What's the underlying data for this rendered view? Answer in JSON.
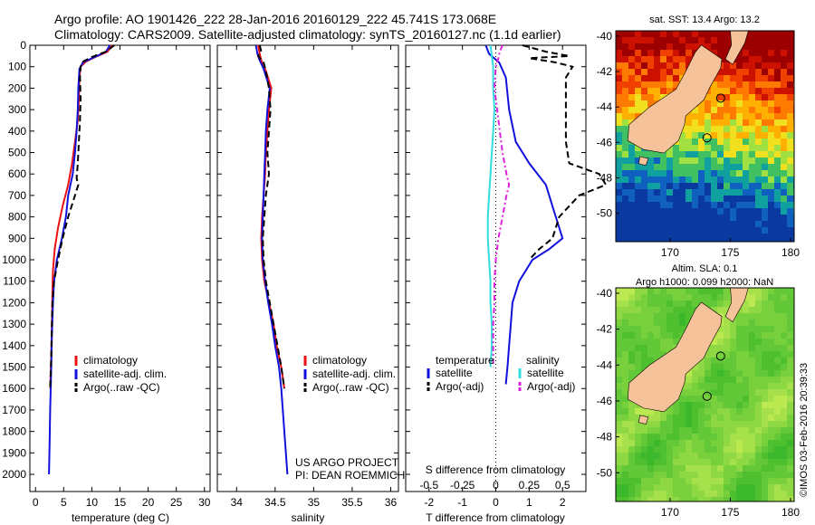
{
  "header": {
    "line1": "Argo profile: AO 1901426_222 28-Jan-2016 20160129_222 45.741S 173.068E",
    "line2": "Climatology: CARS2009. Satellite-adjusted climatology: synTS_20160127.nc (1.1d earlier)"
  },
  "annotations": {
    "project": "US ARGO PROJECT",
    "pi": "PI: DEAN ROEMMICH",
    "timestamp": "©IMOS 03-Feb-2016 20:39:33"
  },
  "colors": {
    "climatology": "#ee1111",
    "satellite": "#1111dd",
    "argo": "#000000",
    "salinity_satellite": "#33dddd",
    "salinity_argo": "#dd22dd",
    "land": "#f5c29a"
  },
  "chart_data": [
    {
      "id": "temperature",
      "type": "line",
      "xlabel": "temperature (deg C)",
      "ylabel": "",
      "xlim": [
        -1,
        31
      ],
      "ylim": [
        0,
        2080
      ],
      "y_reversed": true,
      "x_ticks": [
        0,
        5,
        10,
        15,
        20,
        25,
        30
      ],
      "y_ticks": [
        0,
        100,
        200,
        300,
        400,
        500,
        600,
        700,
        800,
        900,
        1000,
        1100,
        1200,
        1300,
        1400,
        1500,
        1600,
        1700,
        1800,
        1900,
        2000
      ],
      "legend": [
        "climatology",
        "satellite-adj. clim.",
        "Argo(..raw -QC)"
      ],
      "legend_position": "lower-right",
      "series": [
        {
          "name": "climatology",
          "style": "solid",
          "points": [
            [
              13.6,
              0
            ],
            [
              12.8,
              30
            ],
            [
              11,
              50
            ],
            [
              9,
              75
            ],
            [
              8,
              100
            ],
            [
              7.8,
              150
            ],
            [
              7.7,
              250
            ],
            [
              7.5,
              350
            ],
            [
              7,
              450
            ],
            [
              6.5,
              550
            ],
            [
              5.8,
              650
            ],
            [
              4.8,
              750
            ],
            [
              4,
              850
            ],
            [
              3.4,
              950
            ],
            [
              3.1,
              1050
            ],
            [
              3,
              1150
            ],
            [
              2.9,
              1300
            ],
            [
              2.8,
              1450
            ],
            [
              2.6,
              1600
            ]
          ]
        },
        {
          "name": "satellite-adj. clim.",
          "style": "solid",
          "points": [
            [
              13.2,
              0
            ],
            [
              12.5,
              30
            ],
            [
              10.5,
              55
            ],
            [
              8.4,
              80
            ],
            [
              7.8,
              110
            ],
            [
              7.6,
              200
            ],
            [
              7.5,
              300
            ],
            [
              7.3,
              400
            ],
            [
              7,
              500
            ],
            [
              6.6,
              600
            ],
            [
              5.8,
              700
            ],
            [
              5.4,
              800
            ],
            [
              4.7,
              900
            ],
            [
              3.8,
              1000
            ],
            [
              3.3,
              1100
            ],
            [
              3.1,
              1200
            ],
            [
              2.9,
              1350
            ],
            [
              2.8,
              1500
            ],
            [
              2.6,
              1700
            ],
            [
              2.5,
              1850
            ],
            [
              2.4,
              2000
            ]
          ]
        },
        {
          "name": "Argo(..raw -QC)",
          "style": "dashed",
          "points": [
            [
              14,
              0
            ],
            [
              12.5,
              30
            ],
            [
              10,
              55
            ],
            [
              8.5,
              75
            ],
            [
              8,
              100
            ],
            [
              7.9,
              150
            ],
            [
              8,
              250
            ],
            [
              7.9,
              350
            ],
            [
              7.7,
              450
            ],
            [
              7.5,
              550
            ],
            [
              7.3,
              620
            ],
            [
              7.6,
              650
            ],
            [
              7,
              700
            ],
            [
              5.8,
              800
            ],
            [
              4.8,
              900
            ],
            [
              4,
              1000
            ],
            [
              3.3,
              1100
            ],
            [
              3,
              1200
            ],
            [
              2.9,
              1300
            ],
            [
              2.8,
              1450
            ],
            [
              2.6,
              1600
            ]
          ]
        }
      ]
    },
    {
      "id": "salinity",
      "type": "line",
      "xlabel": "salinity",
      "ylabel": "",
      "xlim": [
        33.75,
        36.1
      ],
      "ylim": [
        0,
        2080
      ],
      "y_reversed": true,
      "x_ticks": [
        34,
        34.5,
        35,
        35.5,
        36
      ],
      "legend": [
        "climatology",
        "satellite-adj. clim.",
        "Argo(..raw -QC)"
      ],
      "legend_position": "lower-right",
      "series": [
        {
          "name": "climatology",
          "style": "solid",
          "points": [
            [
              34.28,
              0
            ],
            [
              34.3,
              40
            ],
            [
              34.32,
              70
            ],
            [
              34.38,
              120
            ],
            [
              34.45,
              200
            ],
            [
              34.42,
              300
            ],
            [
              34.4,
              400
            ],
            [
              34.38,
              500
            ],
            [
              34.37,
              600
            ],
            [
              34.35,
              700
            ],
            [
              34.33,
              800
            ],
            [
              34.32,
              900
            ],
            [
              34.33,
              1000
            ],
            [
              34.36,
              1100
            ],
            [
              34.42,
              1200
            ],
            [
              34.48,
              1300
            ],
            [
              34.52,
              1400
            ],
            [
              34.58,
              1500
            ],
            [
              34.62,
              1600
            ]
          ]
        },
        {
          "name": "satellite-adj. clim.",
          "style": "solid",
          "points": [
            [
              34.25,
              0
            ],
            [
              34.27,
              40
            ],
            [
              34.3,
              70
            ],
            [
              34.35,
              110
            ],
            [
              34.43,
              200
            ],
            [
              34.4,
              300
            ],
            [
              34.38,
              400
            ],
            [
              34.37,
              500
            ],
            [
              34.36,
              600
            ],
            [
              34.35,
              700
            ],
            [
              34.34,
              800
            ],
            [
              34.33,
              900
            ],
            [
              34.34,
              1000
            ],
            [
              34.37,
              1100
            ],
            [
              34.41,
              1200
            ],
            [
              34.46,
              1300
            ],
            [
              34.5,
              1400
            ],
            [
              34.55,
              1500
            ],
            [
              34.58,
              1600
            ],
            [
              34.6,
              1700
            ],
            [
              34.62,
              1800
            ],
            [
              34.64,
              1900
            ],
            [
              34.66,
              2000
            ]
          ]
        },
        {
          "name": "Argo(..raw -QC)",
          "style": "dashed",
          "points": [
            [
              34.3,
              0
            ],
            [
              34.32,
              30
            ],
            [
              34.28,
              50
            ],
            [
              34.35,
              80
            ],
            [
              34.38,
              120
            ],
            [
              34.42,
              200
            ],
            [
              34.44,
              300
            ],
            [
              34.42,
              400
            ],
            [
              34.4,
              500
            ],
            [
              34.42,
              600
            ],
            [
              34.38,
              700
            ],
            [
              34.36,
              800
            ],
            [
              34.34,
              900
            ],
            [
              34.35,
              1000
            ],
            [
              34.38,
              1100
            ],
            [
              34.43,
              1200
            ],
            [
              34.48,
              1300
            ],
            [
              34.53,
              1400
            ],
            [
              34.58,
              1500
            ],
            [
              34.62,
              1600
            ]
          ]
        }
      ]
    },
    {
      "id": "difference",
      "type": "line",
      "xlabel": "T difference from climatology",
      "xlabel_top": "S difference from climatology",
      "xlim": [
        -2.7,
        2.7
      ],
      "ylim": [
        0,
        2080
      ],
      "y_reversed": true,
      "x_ticks": [
        -2,
        -1,
        0,
        1,
        2
      ],
      "s_ticks": [
        -0.5,
        -0.25,
        0,
        0.25,
        0.5
      ],
      "s_scale": 4,
      "legend_titles": [
        "temperature",
        "salinity"
      ],
      "legend_left": [
        "satellite",
        "Argo(-adj)"
      ],
      "legend_right": [
        "satellite",
        "Argo(-adj)"
      ],
      "series": [
        {
          "name": "temperature satellite",
          "var": "T",
          "style": "solid",
          "points": [
            [
              -0.3,
              0
            ],
            [
              -0.2,
              40
            ],
            [
              0.1,
              80
            ],
            [
              0.3,
              150
            ],
            [
              0.4,
              300
            ],
            [
              0.6,
              450
            ],
            [
              1,
              550
            ],
            [
              1.5,
              650
            ],
            [
              1.7,
              750
            ],
            [
              1.9,
              850
            ],
            [
              2,
              900
            ],
            [
              1.6,
              950
            ],
            [
              1.1,
              1000
            ],
            [
              0.7,
              1100
            ],
            [
              0.5,
              1200
            ],
            [
              0.45,
              1300
            ],
            [
              0.4,
              1400
            ],
            [
              0.35,
              1500
            ],
            [
              0.3,
              1580
            ]
          ]
        },
        {
          "name": "temperature Argo(-adj)",
          "var": "T",
          "style": "dashed",
          "points": [
            [
              0.8,
              0
            ],
            [
              1.5,
              30
            ],
            [
              2.2,
              50
            ],
            [
              1,
              60
            ],
            [
              1.8,
              80
            ],
            [
              2.3,
              100
            ],
            [
              2.1,
              150
            ],
            [
              2.1,
              300
            ],
            [
              2.1,
              450
            ],
            [
              2.2,
              550
            ],
            [
              3.1,
              600
            ],
            [
              3.3,
              650
            ],
            [
              2.5,
              700
            ],
            [
              1.9,
              800
            ],
            [
              1.7,
              900
            ],
            [
              1.3,
              950
            ],
            [
              1,
              1000
            ]
          ]
        },
        {
          "name": "salinity satellite",
          "var": "S",
          "style": "solid",
          "points": [
            [
              -0.04,
              0
            ],
            [
              -0.03,
              50
            ],
            [
              -0.02,
              100
            ],
            [
              -0.02,
              200
            ],
            [
              -0.01,
              300
            ],
            [
              -0.02,
              400
            ],
            [
              -0.03,
              500
            ],
            [
              -0.04,
              600
            ],
            [
              -0.05,
              700
            ],
            [
              -0.06,
              800
            ],
            [
              -0.06,
              900
            ],
            [
              -0.05,
              1000
            ],
            [
              -0.04,
              1100
            ],
            [
              -0.04,
              1200
            ],
            [
              -0.03,
              1300
            ],
            [
              -0.03,
              1400
            ],
            [
              -0.04,
              1500
            ]
          ]
        },
        {
          "name": "salinity Argo(-adj)",
          "var": "S",
          "style": "dashdot",
          "points": [
            [
              0.05,
              0
            ],
            [
              0.03,
              30
            ],
            [
              0.02,
              60
            ],
            [
              0,
              100
            ],
            [
              -0.01,
              200
            ],
            [
              0.01,
              300
            ],
            [
              0.03,
              400
            ],
            [
              0.05,
              500
            ],
            [
              0.08,
              600
            ],
            [
              0.1,
              650
            ],
            [
              0.08,
              700
            ],
            [
              0.05,
              800
            ],
            [
              0.02,
              900
            ],
            [
              0,
              1000
            ],
            [
              -0.01,
              1100
            ],
            [
              -0.01,
              1200
            ],
            [
              -0.02,
              1300
            ],
            [
              -0.02,
              1400
            ],
            [
              -0.02,
              1500
            ]
          ]
        }
      ]
    },
    {
      "id": "sst-map",
      "type": "heatmap",
      "title": "sat. SST: 13.4 Argo: 13.2",
      "x_ticks": [
        170,
        175,
        180
      ],
      "y_ticks": [
        -40,
        -42,
        -44,
        -46,
        -48,
        -50
      ],
      "xlim": [
        165.5,
        180.3
      ],
      "ylim": [
        -51.6,
        -39.7
      ],
      "marker": [
        173.07,
        -45.74
      ],
      "colors": [
        "#9c0000",
        "#cc1100",
        "#f04000",
        "#ff7a00",
        "#ffb000",
        "#f0e020",
        "#a0e040",
        "#40c060",
        "#10a0a0",
        "#1060c0",
        "#0a3aa0"
      ]
    },
    {
      "id": "sla-map",
      "type": "heatmap",
      "title": "Altim. SLA: 0.1",
      "subtitle": "Argo h1000: 0.099 h2000: NaN",
      "x_ticks": [
        170,
        175,
        180
      ],
      "y_ticks": [
        -40,
        -42,
        -44,
        -46,
        -48,
        -50
      ],
      "xlim": [
        165.5,
        180.3
      ],
      "ylim": [
        -51.6,
        -39.7
      ],
      "marker": [
        173.07,
        -45.74
      ],
      "colors": [
        "#3cb82c",
        "#4ec030",
        "#62c838",
        "#78d03c",
        "#8ed844",
        "#a6e04a",
        "#bce850"
      ]
    }
  ]
}
